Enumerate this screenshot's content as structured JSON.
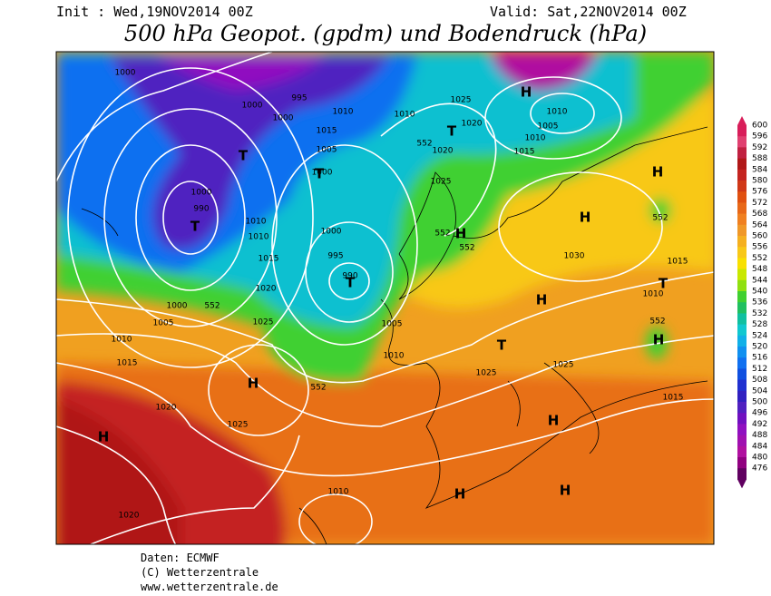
{
  "header": {
    "init": "Init : Wed,19NOV2014 00Z",
    "valid": "Valid: Sat,22NOV2014 00Z",
    "title": "500 hPa Geopot. (gpdm) und Bodendruck (hPa)"
  },
  "colorbar": {
    "levels": [
      600,
      596,
      592,
      588,
      584,
      580,
      576,
      572,
      568,
      564,
      560,
      556,
      552,
      548,
      544,
      540,
      536,
      532,
      528,
      524,
      520,
      516,
      512,
      508,
      504,
      500,
      496,
      492,
      488,
      484,
      480,
      476
    ],
    "colors": [
      "#d81e5a",
      "#e04070",
      "#c02040",
      "#b01818",
      "#c42420",
      "#d03818",
      "#e05010",
      "#e86818",
      "#f08020",
      "#f09828",
      "#f5b020",
      "#f8c818",
      "#f8e000",
      "#c8e800",
      "#90e010",
      "#40d030",
      "#20c060",
      "#10c0a0",
      "#10c8d0",
      "#10b0e8",
      "#1090f0",
      "#1070f0",
      "#1050e0",
      "#2030d0",
      "#3020c0",
      "#5020c0",
      "#7010c0",
      "#9010c0",
      "#a010b0",
      "#b010a0",
      "#900080",
      "#600060"
    ]
  },
  "map": {
    "labels": [
      "1000",
      "1000",
      "995",
      "1000",
      "1010",
      "1015",
      "1005",
      "1000",
      "1000",
      "990",
      "1010",
      "1010",
      "1015",
      "1020",
      "1000",
      "995",
      "990",
      "1000",
      "1005",
      "1010",
      "1015",
      "1020",
      "1025",
      "1025",
      "1005",
      "1010",
      "1020",
      "1025",
      "1030",
      "1025",
      "1025",
      "1015",
      "1010",
      "1015",
      "1020",
      "1010",
      "1005",
      "1010",
      "1010",
      "1015",
      "1020",
      "1025",
      "1010",
      "T",
      "T",
      "T",
      "T",
      "T",
      "T",
      "T",
      "H",
      "H",
      "H",
      "H",
      "H",
      "H",
      "H",
      "H",
      "H",
      "H",
      "H",
      "552",
      "552",
      "552",
      "552",
      "552",
      "552",
      "552"
    ]
  },
  "footer": {
    "source": "Daten: ECMWF",
    "copyright": "(C) Wetterzentrale",
    "url": "www.wetterzentrale.de"
  }
}
